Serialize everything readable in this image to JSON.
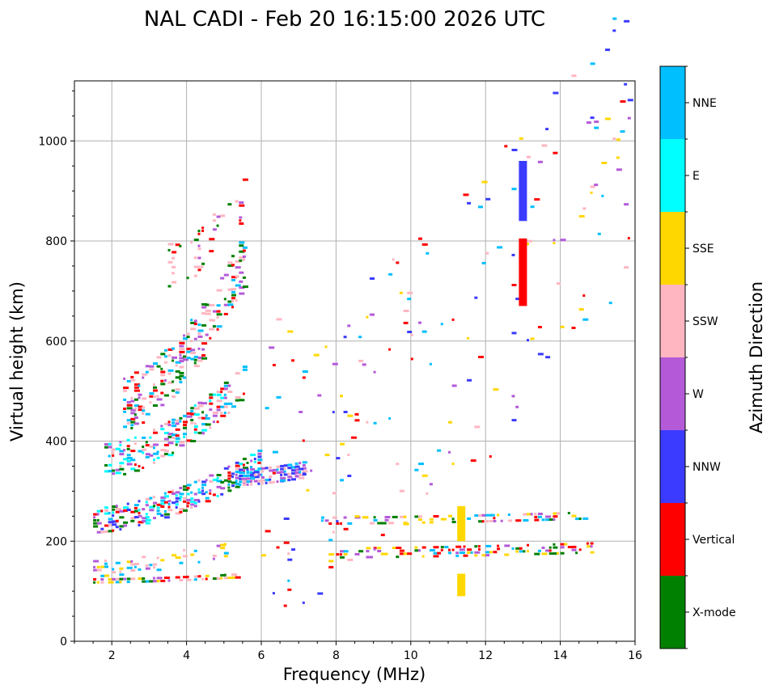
{
  "chart_data": {
    "type": "scatter",
    "title": "NAL CADI - Feb 20 16:15:00 2026 UTC",
    "xlabel": "Frequency (MHz)",
    "ylabel": "Virtual height (km)",
    "xlim": [
      1,
      16
    ],
    "ylim": [
      0,
      1120
    ],
    "xticks": [
      2,
      4,
      6,
      8,
      10,
      12,
      14,
      16
    ],
    "yticks": [
      0,
      200,
      400,
      600,
      800,
      1000
    ],
    "grid": true,
    "colorbar": {
      "label": "Azimuth Direction",
      "categories": [
        {
          "name": "X-mode",
          "color": "#008000"
        },
        {
          "name": "Vertical",
          "color": "#ff0000"
        },
        {
          "name": "NNW",
          "color": "#3b3bff"
        },
        {
          "name": "W",
          "color": "#b45ad8"
        },
        {
          "name": "SSW",
          "color": "#ffb6c1"
        },
        {
          "name": "SSE",
          "color": "#ffd700"
        },
        {
          "name": "E",
          "color": "#00ffff"
        },
        {
          "name": "NNE",
          "color": "#00bfff"
        }
      ]
    },
    "traces": [
      {
        "name": "low-E-layer",
        "f0": 1.5,
        "f1": 5.3,
        "h0": 125,
        "h1": 135,
        "dh": 10,
        "density": 0.65,
        "mix": [
          "NNE",
          "SSE",
          "Vertical",
          "X-mode",
          "W",
          "SSW"
        ]
      },
      {
        "name": "sporadic-E",
        "f0": 1.5,
        "f1": 5.0,
        "h0": 150,
        "h1": 190,
        "dh": 35,
        "density": 0.25,
        "mix": [
          "SSE",
          "SSW",
          "NNE",
          "W"
        ]
      },
      {
        "name": "F-trace-1",
        "f0": 1.5,
        "f1": 5.9,
        "h0": 245,
        "h1": 360,
        "dh": 50,
        "density": 0.55,
        "mix": [
          "NNE",
          "E",
          "Vertical",
          "X-mode",
          "NNW",
          "W",
          "SSW"
        ]
      },
      {
        "name": "F-trace-2",
        "f0": 1.8,
        "f1": 5.5,
        "h0": 365,
        "h1": 520,
        "dh": 70,
        "density": 0.35,
        "mix": [
          "NNE",
          "Vertical",
          "X-mode",
          "SSW",
          "W",
          "E"
        ]
      },
      {
        "name": "F-trace-3",
        "f0": 2.3,
        "f1": 5.5,
        "h0": 480,
        "h1": 760,
        "dh": 110,
        "density": 0.3,
        "mix": [
          "Vertical",
          "X-mode",
          "NNE",
          "SSW",
          "W"
        ]
      },
      {
        "name": "high-echo",
        "f0": 3.4,
        "f1": 5.5,
        "h0": 750,
        "h1": 880,
        "dh": 90,
        "density": 0.12,
        "mix": [
          "Vertical",
          "X-mode",
          "W",
          "SSW"
        ]
      },
      {
        "name": "cusp-W",
        "f0": 5.4,
        "f1": 7.1,
        "h0": 330,
        "h1": 345,
        "dh": 30,
        "density": 0.8,
        "mix": [
          "W",
          "NNW",
          "NNE",
          "SSW"
        ]
      },
      {
        "name": "mid-band-250",
        "f0": 7.6,
        "f1": 14.6,
        "h0": 245,
        "h1": 255,
        "dh": 15,
        "density": 0.35,
        "mix": [
          "Vertical",
          "SSW",
          "NNE",
          "W",
          "X-mode",
          "SSE"
        ]
      },
      {
        "name": "mid-band-180",
        "f0": 7.8,
        "f1": 14.8,
        "h0": 180,
        "h1": 190,
        "dh": 20,
        "density": 0.35,
        "mix": [
          "NNE",
          "X-mode",
          "Vertical",
          "SSE",
          "W"
        ]
      },
      {
        "name": "scatter-high",
        "f0": 6.0,
        "f1": 15.8,
        "h0": 360,
        "h1": 1000,
        "dh": 600,
        "density": 0.02,
        "mix": [
          "SSE",
          "Vertical",
          "W",
          "NNE",
          "SSW",
          "NNW"
        ]
      }
    ],
    "columns": [
      {
        "name": "NNW-column-high",
        "f": 13.0,
        "h0": 840,
        "h1": 960,
        "color": "NNW"
      },
      {
        "name": "Vertical-column",
        "f": 13.0,
        "h0": 670,
        "h1": 805,
        "color": "Vertical"
      },
      {
        "name": "SSE-column-low",
        "f": 11.35,
        "h0": 90,
        "h1": 135,
        "color": "SSE"
      },
      {
        "name": "SSE-column-mid",
        "f": 11.35,
        "h0": 200,
        "h1": 270,
        "color": "SSE"
      }
    ]
  }
}
